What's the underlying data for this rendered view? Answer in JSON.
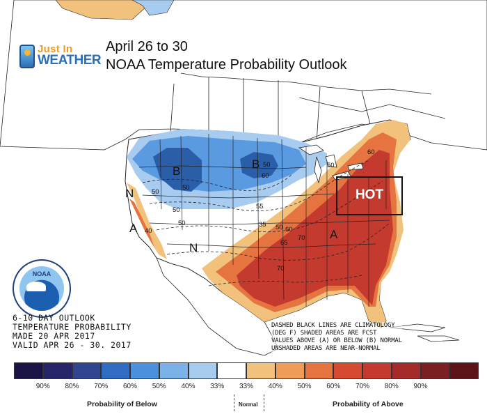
{
  "brand": {
    "line1": "Just In",
    "line2": "WEATHER"
  },
  "titles": {
    "line1": "April 26 to 30",
    "line2": "NOAA Temperature Probability Outlook"
  },
  "noaa_logo": {
    "text": "NOAA"
  },
  "info_text": [
    "6-10 DAY OUTLOOK",
    "TEMPERATURE PROBABILITY",
    "MADE   20 APR 2017",
    "VALID   APR 26 - 30. 2017"
  ],
  "legend_note": [
    "DASHED BLACK LINES ARE CLIMATOLOGY",
    "(DEG F) SHADED AREAS ARE FCST",
    "VALUES ABOVE (A) OR BELOW (B) NORMAL",
    "UNSHADED AREAS ARE NEAR-NORMAL"
  ],
  "callout": {
    "label": "HOT"
  },
  "map_labels": {
    "b_west": "B",
    "b_central": "B",
    "n_west": "N",
    "n_south": "N",
    "a_west": "A",
    "a_southeast": "A"
  },
  "contour_labels": [
    "50",
    "50",
    "50",
    "50",
    "60",
    "50",
    "55",
    "60",
    "50",
    "40",
    "50",
    "70",
    "65",
    "70",
    "60",
    "35"
  ],
  "colorbar": {
    "colors": [
      "#1b1446",
      "#27256a",
      "#2f4590",
      "#2f6cc2",
      "#4a90db",
      "#7cb2e8",
      "#a8cbf0",
      "#ffffff",
      "#f2c27c",
      "#ee9c58",
      "#e57440",
      "#d74a32",
      "#c43a2f",
      "#a42a2b",
      "#7b1f22",
      "#5c1418"
    ],
    "ticks": [
      "90%",
      "80%",
      "70%",
      "60%",
      "50%",
      "40%",
      "33%",
      "33%",
      "40%",
      "50%",
      "60%",
      "70%",
      "80%",
      "90%"
    ],
    "caption_below": "Probability of Below",
    "caption_normal": "Normal",
    "caption_above": "Probability of Above"
  },
  "colors": {
    "above_light": "#f2c27c",
    "above_mid": "#e57440",
    "above_dark": "#c43a2f",
    "below_light": "#a8cbf0",
    "below_mid": "#5a9ae0",
    "below_dark": "#2a5ea8"
  }
}
